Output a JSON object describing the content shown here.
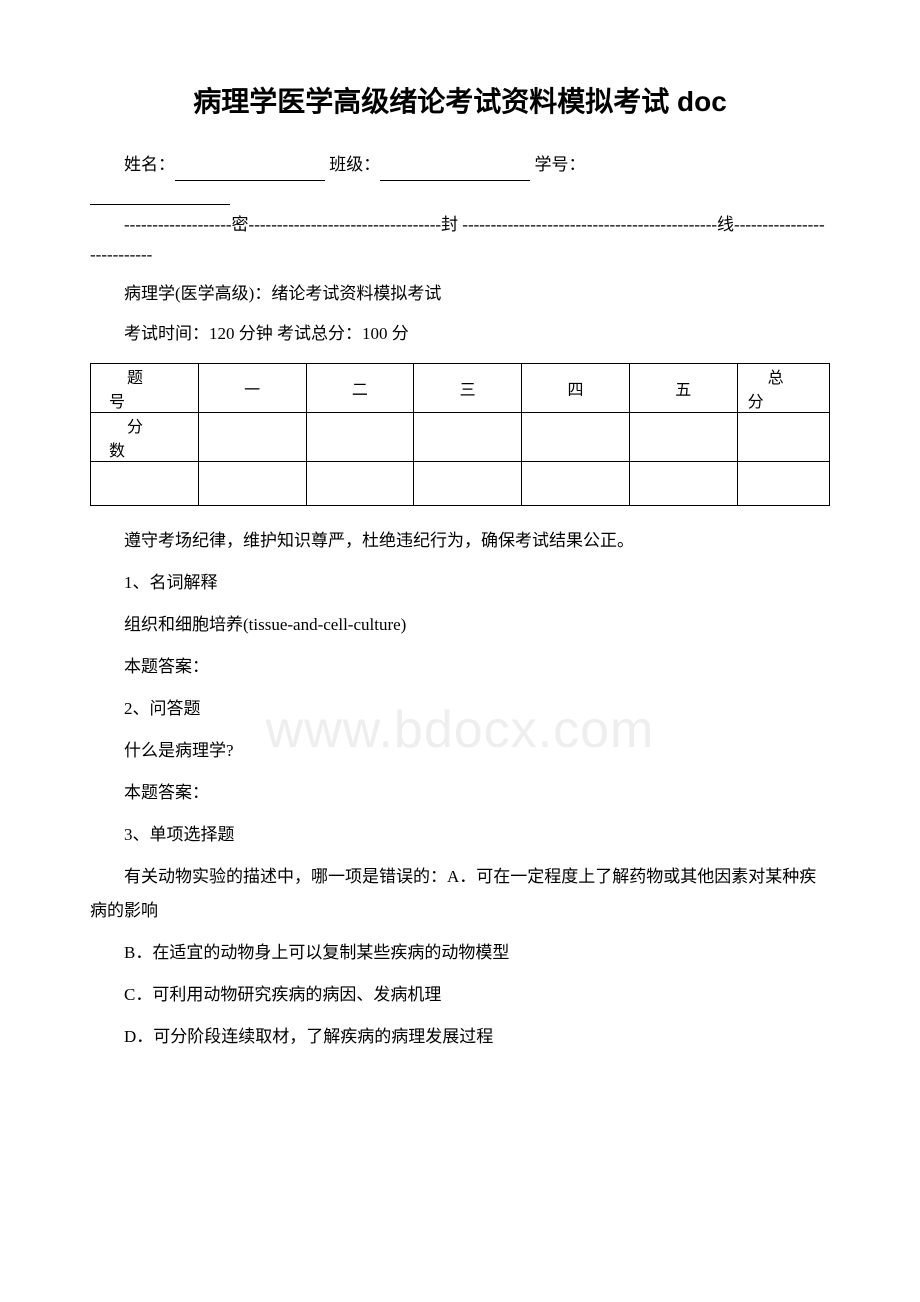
{
  "title": "病理学医学高级绪论考试资料模拟考试 doc",
  "info": {
    "name_label": "姓名：",
    "class_label": "班级：",
    "id_label": "学号："
  },
  "divider": "-------------------密----------------------------------封 ---------------------------------------------线---------------------------",
  "subtitle": "病理学(医学高级)：绪论考试资料模拟考试",
  "exam_info": "考试时间：120 分钟  考试总分：100 分",
  "table": {
    "row1_label_c1": "题",
    "row1_label_c2": "号",
    "cols": [
      "一",
      "二",
      "三",
      "四",
      "五"
    ],
    "total_c1": "总",
    "total_c2": "分",
    "row2_label_c1": "分",
    "row2_label_c2": "数"
  },
  "notice": "遵守考场纪律，维护知识尊严，杜绝违纪行为，确保考试结果公正。",
  "q1_num": "1、名词解释",
  "q1_text": "组织和细胞培养(tissue-and-cell-culture)",
  "q1_answer": "本题答案：",
  "q2_num": "2、问答题",
  "q2_text": "什么是病理学?",
  "q2_answer": "本题答案：",
  "q3_num": "3、单项选择题",
  "q3_stem": "有关动物实验的描述中，哪一项是错误的：A．可在一定程度上了解药物或其他因素对某种疾病的影响",
  "q3_b": "B．在适宜的动物身上可以复制某些疾病的动物模型",
  "q3_c": "C．可利用动物研究疾病的病因、发病机理",
  "q3_d": "D．可分阶段连续取材，了解疾病的病理发展过程",
  "watermark": "www.bdocx.com"
}
